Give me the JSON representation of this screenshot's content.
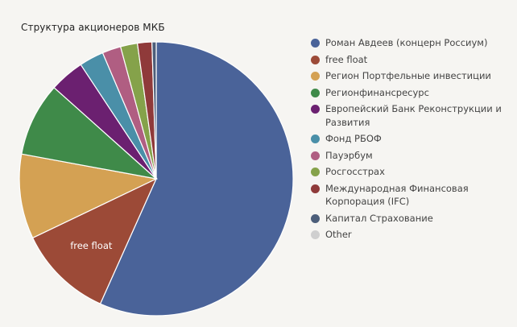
{
  "chart_data": {
    "type": "pie",
    "title": "Структура акционеров МКБ",
    "legend_position": "right",
    "slices": [
      {
        "label": "Роман Авдеев (концерн Россиум)",
        "value": 56.7,
        "color": "#4a6399"
      },
      {
        "label": "free float",
        "value": 11.2,
        "color": "#9c4a37"
      },
      {
        "label": "Регион Портфельные инвестиции",
        "value": 10.0,
        "color": "#d4a153"
      },
      {
        "label": "Регионфинансресурс",
        "value": 8.7,
        "color": "#3f8a49"
      },
      {
        "label": "Европейский Банк Реконструкции и Развития",
        "value": 4.1,
        "color": "#6b2070"
      },
      {
        "label": "Фонд РБОФ",
        "value": 2.9,
        "color": "#4a8fa8"
      },
      {
        "label": "Пауэрбум",
        "value": 2.2,
        "color": "#b05e82"
      },
      {
        "label": "Росгосстрах",
        "value": 2.0,
        "color": "#85a24a"
      },
      {
        "label": "Международная Финансовая Корпорация (IFC)",
        "value": 1.7,
        "color": "#8f3a3a"
      },
      {
        "label": "Капитал Страхование",
        "value": 0.5,
        "color": "#4c5e7a"
      },
      {
        "label": "Other",
        "value": 0.0,
        "color": "#cfcfcf"
      }
    ],
    "data_labels": [
      {
        "slice": "free float",
        "text": "free float"
      }
    ]
  }
}
